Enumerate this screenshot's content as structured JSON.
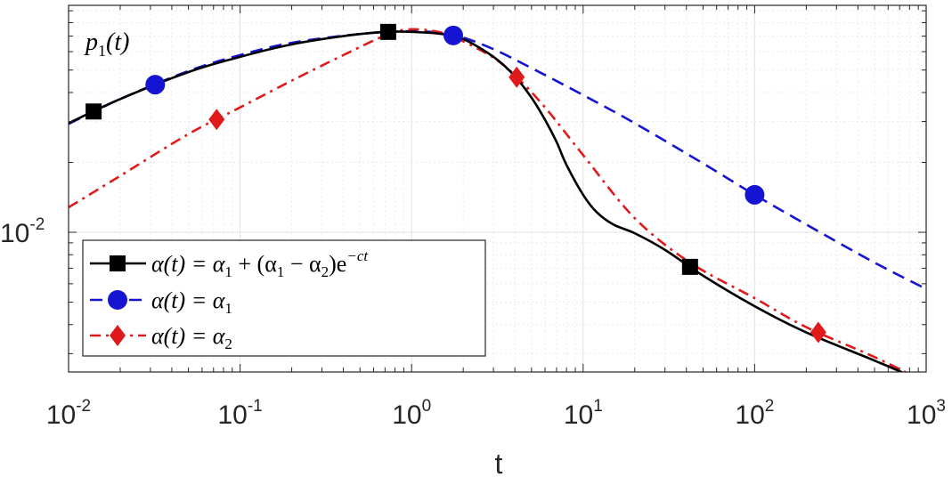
{
  "chart_data": {
    "type": "line",
    "title": "",
    "annotation": {
      "base": "p",
      "sub": "1",
      "arg": "(t)"
    },
    "xlabel": "t",
    "ylabel": "",
    "xscale": "log",
    "yscale": "log",
    "xlim": [
      0.01,
      1000
    ],
    "ylim": [
      0.0025,
      0.095
    ],
    "grid": true,
    "legend_position": "bottom-left",
    "x_ticks": [
      {
        "base": "10",
        "exp": "-2"
      },
      {
        "base": "10",
        "exp": "-1"
      },
      {
        "base": "10",
        "exp": "0"
      },
      {
        "base": "10",
        "exp": "1"
      },
      {
        "base": "10",
        "exp": "2"
      },
      {
        "base": "10",
        "exp": "3"
      }
    ],
    "y_ticks": [
      {
        "base": "10",
        "exp": "-2"
      }
    ],
    "series": [
      {
        "name": "α(t) = α₁ + (α₁ − α₂)e⁻ᶜᵗ",
        "legend": {
          "lhs": "α(t) = α",
          "lhs_sub": "1",
          "mid": " + (α",
          "mid_sub1": "1",
          "mid2": " − α",
          "mid_sub2": "2",
          "tail": ")e",
          "tail_sup": "−ct"
        },
        "color": "#000000",
        "dash": "solid",
        "marker": "square",
        "points": [
          [
            0.01,
            0.0295
          ],
          [
            0.02,
            0.0375
          ],
          [
            0.05,
            0.049
          ],
          [
            0.1,
            0.057
          ],
          [
            0.2,
            0.0645
          ],
          [
            0.4,
            0.07
          ],
          [
            0.7,
            0.073
          ],
          [
            1.0,
            0.073
          ],
          [
            1.5,
            0.0715
          ],
          [
            2.0,
            0.068
          ],
          [
            3.0,
            0.057
          ],
          [
            4.0,
            0.047
          ],
          [
            5.0,
            0.038
          ],
          [
            6.0,
            0.0305
          ],
          [
            7.0,
            0.0245
          ],
          [
            8.0,
            0.0195
          ],
          [
            10.0,
            0.0145
          ],
          [
            12.0,
            0.0122
          ],
          [
            15.0,
            0.0108
          ],
          [
            20.0,
            0.0099
          ],
          [
            30.0,
            0.0084
          ],
          [
            50.0,
            0.0065
          ],
          [
            100.0,
            0.0048
          ],
          [
            200.0,
            0.0037
          ],
          [
            500.0,
            0.0028
          ],
          [
            1000.0,
            0.00225
          ]
        ],
        "marker_x": [
          0.014,
          0.73,
          42
        ]
      },
      {
        "name": "α(t) = α₁",
        "legend": {
          "lhs": "α(t) = α",
          "lhs_sub": "1"
        },
        "color": "#1414d2",
        "dash": "dashed",
        "marker": "circle",
        "points": [
          [
            0.01,
            0.0293
          ],
          [
            0.02,
            0.0375
          ],
          [
            0.05,
            0.0495
          ],
          [
            0.1,
            0.058
          ],
          [
            0.2,
            0.0655
          ],
          [
            0.5,
            0.0715
          ],
          [
            1.0,
            0.0735
          ],
          [
            1.5,
            0.0722
          ],
          [
            2.0,
            0.069
          ],
          [
            3.0,
            0.0615
          ],
          [
            5.0,
            0.051
          ],
          [
            10.0,
            0.039
          ],
          [
            20.0,
            0.0295
          ],
          [
            50.0,
            0.0198
          ],
          [
            100.0,
            0.0145
          ],
          [
            200.0,
            0.0108
          ],
          [
            500.0,
            0.0074
          ],
          [
            1000.0,
            0.0057
          ]
        ],
        "marker_x": [
          0.032,
          1.75,
          100
        ]
      },
      {
        "name": "α(t) = α₂",
        "legend": {
          "lhs": "α(t) = α",
          "lhs_sub": "2"
        },
        "color": "#e01a1a",
        "dash": "dashdot",
        "marker": "diamond",
        "points": [
          [
            0.01,
            0.0128
          ],
          [
            0.02,
            0.0175
          ],
          [
            0.05,
            0.0265
          ],
          [
            0.1,
            0.0345
          ],
          [
            0.2,
            0.045
          ],
          [
            0.4,
            0.058
          ],
          [
            0.7,
            0.0705
          ],
          [
            0.9,
            0.0745
          ],
          [
            1.2,
            0.0745
          ],
          [
            1.6,
            0.0715
          ],
          [
            2.0,
            0.0665
          ],
          [
            3.0,
            0.0565
          ],
          [
            4.0,
            0.0475
          ],
          [
            6.0,
            0.0345
          ],
          [
            10.0,
            0.0215
          ],
          [
            20.0,
            0.0115
          ],
          [
            42.0,
            0.0074
          ],
          [
            100.0,
            0.0052
          ],
          [
            200.0,
            0.0039
          ],
          [
            500.0,
            0.0029
          ],
          [
            1000.0,
            0.00225
          ]
        ],
        "marker_x": [
          0.073,
          4.1,
          235
        ]
      }
    ]
  }
}
